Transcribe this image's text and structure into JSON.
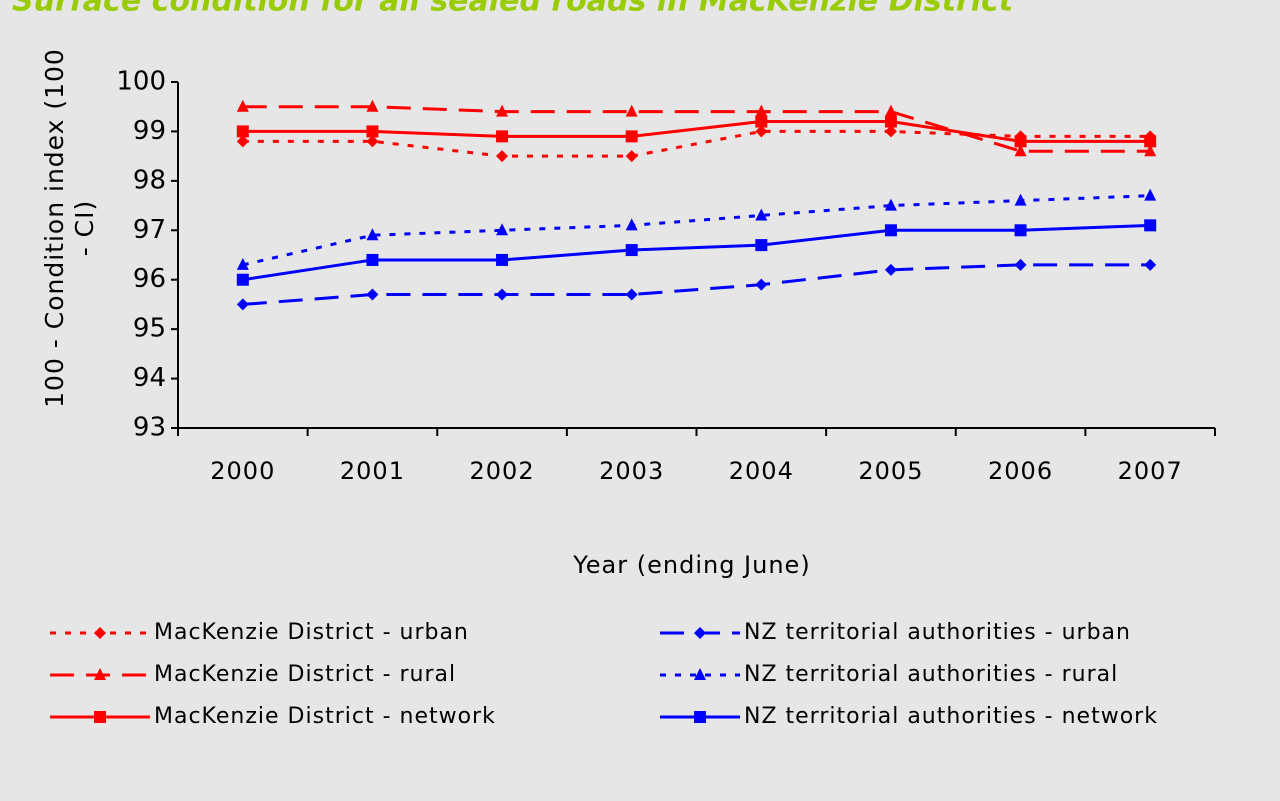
{
  "chart_data": {
    "type": "line",
    "title": "Surface condition for all sealed roads in MacKenzie District",
    "y_label": "100 - Condition index (100 - CI)",
    "x_label": "Year (ending June)",
    "categories": [
      "2000",
      "2001",
      "2002",
      "2003",
      "2004",
      "2005",
      "2006",
      "2007"
    ],
    "ylim": [
      93,
      100
    ],
    "yticks": [
      93,
      94,
      95,
      96,
      97,
      98,
      99,
      100
    ],
    "grid": false,
    "series": [
      {
        "name": "MacKenzie District - urban",
        "color": "#ff0000",
        "line_style": "dotted",
        "marker": "diamond",
        "values": [
          98.8,
          98.8,
          98.5,
          98.5,
          99.0,
          99.0,
          98.9,
          98.9
        ]
      },
      {
        "name": "MacKenzie District - rural",
        "color": "#ff0000",
        "line_style": "dashed",
        "marker": "triangle",
        "values": [
          99.5,
          99.5,
          99.4,
          99.4,
          99.4,
          99.4,
          98.6,
          98.6
        ]
      },
      {
        "name": "MacKenzie District - network",
        "color": "#ff0000",
        "line_style": "solid",
        "marker": "square",
        "values": [
          99.0,
          99.0,
          98.9,
          98.9,
          99.2,
          99.2,
          98.8,
          98.8
        ]
      },
      {
        "name": "NZ territorial authorities - urban",
        "color": "#0000ff",
        "line_style": "dashed",
        "marker": "diamond",
        "values": [
          95.5,
          95.7,
          95.7,
          95.7,
          95.9,
          96.2,
          96.3,
          96.3
        ]
      },
      {
        "name": "NZ territorial authorities - rural",
        "color": "#0000ff",
        "line_style": "dotted",
        "marker": "triangle",
        "values": [
          96.3,
          96.9,
          97.0,
          97.1,
          97.3,
          97.5,
          97.6,
          97.7
        ]
      },
      {
        "name": "NZ territorial authorities - network",
        "color": "#0000ff",
        "line_style": "solid",
        "marker": "square",
        "values": [
          96.0,
          96.4,
          96.4,
          96.6,
          96.7,
          97.0,
          97.0,
          97.1
        ]
      }
    ]
  }
}
